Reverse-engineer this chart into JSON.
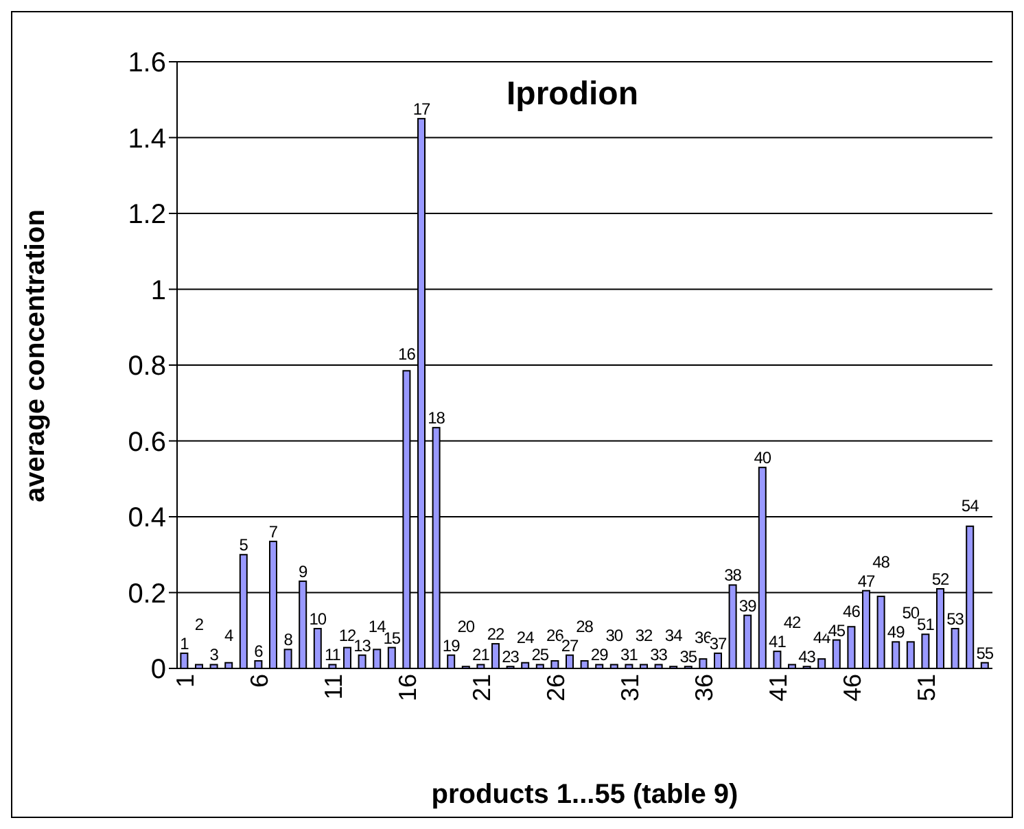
{
  "chart_data": {
    "type": "bar",
    "title": "Iprodion",
    "xlabel": "products 1...55 (table 9)",
    "ylabel": "average concentration",
    "categories": [
      "1",
      "2",
      "3",
      "4",
      "5",
      "6",
      "7",
      "8",
      "9",
      "10",
      "11",
      "12",
      "13",
      "14",
      "15",
      "16",
      "17",
      "18",
      "19",
      "20",
      "21",
      "22",
      "23",
      "24",
      "25",
      "26",
      "27",
      "28",
      "29",
      "30",
      "31",
      "32",
      "33",
      "34",
      "35",
      "36",
      "37",
      "38",
      "39",
      "40",
      "41",
      "42",
      "43",
      "44",
      "45",
      "46",
      "47",
      "48",
      "49",
      "50",
      "51",
      "52",
      "53",
      "54",
      "55"
    ],
    "values": [
      0.04,
      0.01,
      0.01,
      0.015,
      0.3,
      0.02,
      0.335,
      0.05,
      0.23,
      0.105,
      0.01,
      0.055,
      0.035,
      0.05,
      0.055,
      0.785,
      1.45,
      0.635,
      0.035,
      0.005,
      0.01,
      0.065,
      0.005,
      0.015,
      0.01,
      0.02,
      0.035,
      0.02,
      0.01,
      0.01,
      0.01,
      0.01,
      0.01,
      0.005,
      0.005,
      0.025,
      0.04,
      0.22,
      0.14,
      0.53,
      0.045,
      0.01,
      0.005,
      0.025,
      0.075,
      0.11,
      0.205,
      0.19,
      0.07,
      0.07,
      0.09,
      0.21,
      0.105,
      0.375,
      0.015
    ],
    "color": "#9999ff",
    "ylim": [
      0,
      1.6
    ],
    "yticks": [
      0,
      0.2,
      0.4,
      0.6,
      0.8,
      1,
      1.2,
      1.4,
      1.6
    ],
    "grid": "y"
  }
}
